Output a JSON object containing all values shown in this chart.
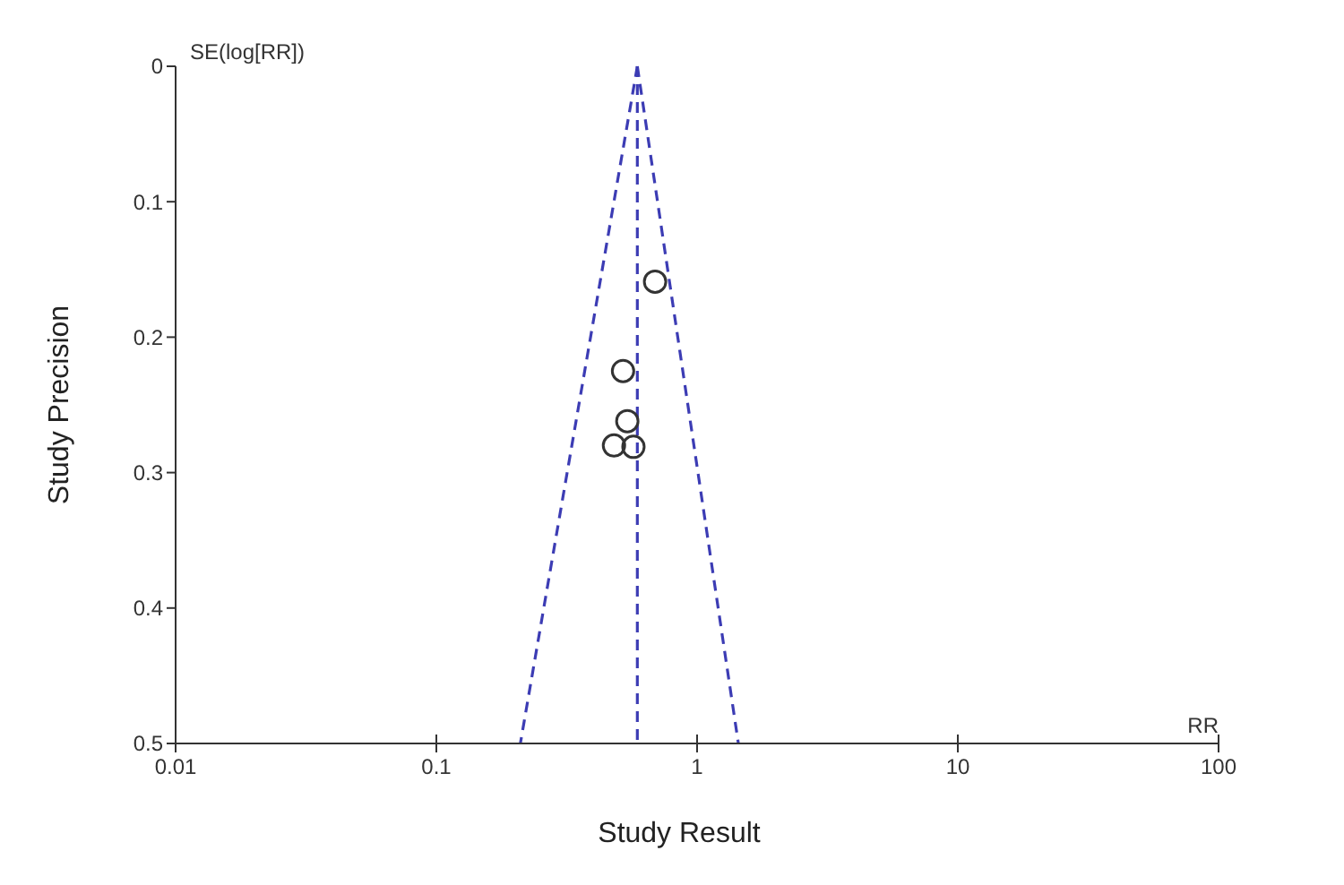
{
  "chart_data": {
    "type": "scatter",
    "xlabel": "Study Result",
    "ylabel": "Study Precision",
    "annotations": [
      "SE(log[RR])",
      "RR"
    ],
    "log": "x",
    "xlim": [
      0.01,
      100
    ],
    "xticks": [
      0.01,
      0.1,
      1,
      10,
      100
    ],
    "ylim": [
      0.5,
      0
    ],
    "yticks": [
      0,
      0.1,
      0.2,
      0.3,
      0.4,
      0.5
    ],
    "grid": false,
    "line_style": "dashed",
    "series": [
      {
        "marker": "circle",
        "color": "#333333",
        "x": [
          0.69,
          0.52,
          0.54,
          0.48,
          0.57
        ],
        "values": [
          0.159,
          0.225,
          0.262,
          0.28,
          0.281
        ]
      },
      {
        "type": "line",
        "marker": "none",
        "color": "#3c3cb4",
        "x": [
          0.59,
          0.21
        ],
        "values": [
          0,
          0.5
        ]
      },
      {
        "type": "line",
        "marker": "none",
        "color": "#3c3cb4",
        "x": [
          0.59,
          1.44
        ],
        "values": [
          0,
          0.5
        ]
      }
    ],
    "ref_lines": [
      {
        "axis": "x",
        "value": 0.59,
        "color": "#3c3cb4",
        "line_style": "dashed"
      }
    ]
  }
}
